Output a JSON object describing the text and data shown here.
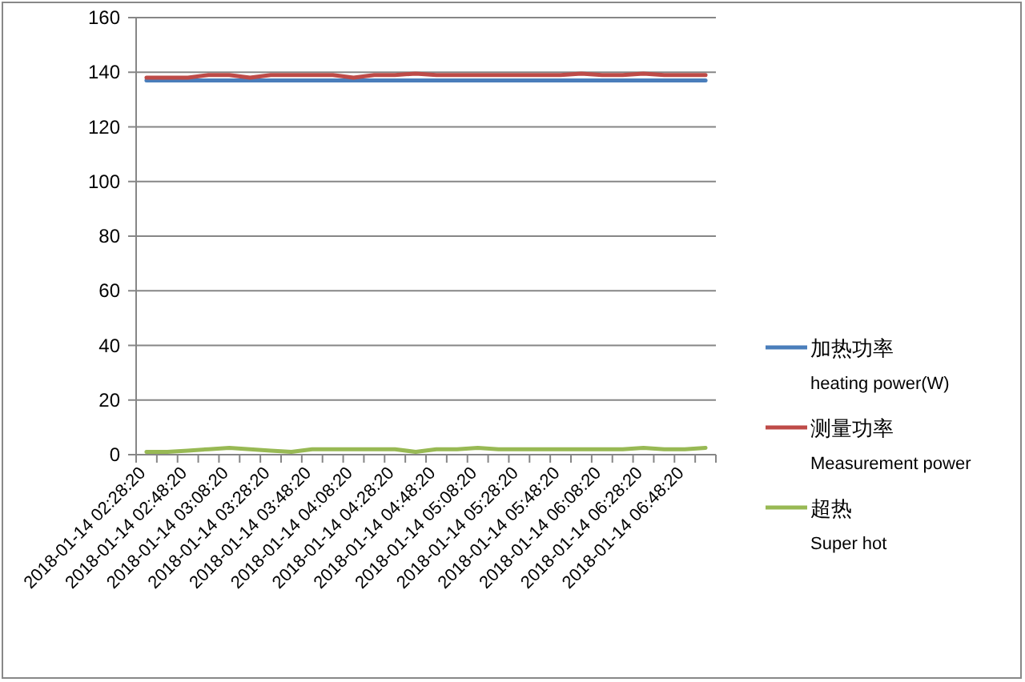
{
  "chart_data": {
    "type": "line",
    "categories": [
      "2018-01-14 02:28:20",
      null,
      "2018-01-14 02:48:20",
      null,
      "2018-01-14 03:08:20",
      null,
      "2018-01-14 03:28:20",
      null,
      "2018-01-14 03:48:20",
      null,
      "2018-01-14 04:08:20",
      null,
      "2018-01-14 04:28:20",
      null,
      "2018-01-14 04:48:20",
      null,
      "2018-01-14 05:08:20",
      null,
      "2018-01-14 05:28:20",
      null,
      "2018-01-14 05:48:20",
      null,
      "2018-01-14 06:08:20",
      null,
      "2018-01-14 06:28:20",
      null,
      "2018-01-14 06:48:20",
      null
    ],
    "series": [
      {
        "name": "加热功率\nheating power(W)",
        "color": "#4a7ebb",
        "values": [
          137,
          137,
          137,
          137,
          137,
          137,
          137,
          137,
          137,
          137,
          137,
          137,
          137,
          137,
          137,
          137,
          137,
          137,
          137,
          137,
          137,
          137,
          137,
          137,
          137,
          137,
          137,
          137
        ]
      },
      {
        "name": "测量功率\nMeasurement power",
        "color": "#be4b48",
        "values": [
          138,
          138,
          138,
          139,
          139,
          138,
          139,
          139,
          139,
          139,
          138,
          139,
          139,
          139.5,
          139,
          139,
          139,
          139,
          139,
          139,
          139,
          139.5,
          139,
          139,
          139.5,
          139,
          139,
          139
        ]
      },
      {
        "name": "超热\nSuper hot",
        "color": "#98b954",
        "values": [
          1,
          1,
          1.5,
          2,
          2.5,
          2,
          1.5,
          1,
          2,
          2,
          2,
          2,
          2,
          1,
          2,
          2,
          2.5,
          2,
          2,
          2,
          2,
          2,
          2,
          2,
          2.5,
          2,
          2,
          2.5
        ]
      }
    ],
    "ylim": [
      0,
      160
    ],
    "yticks": [
      0,
      20,
      40,
      60,
      80,
      100,
      120,
      140,
      160
    ],
    "grid": "y",
    "legend": "right"
  }
}
